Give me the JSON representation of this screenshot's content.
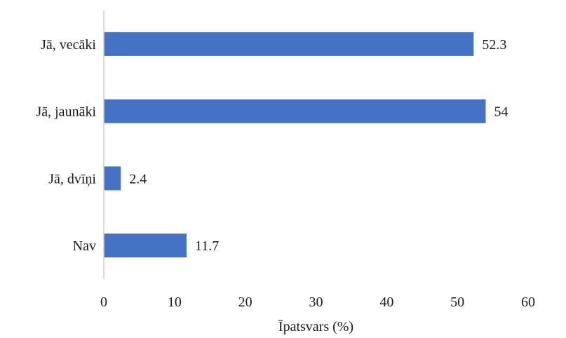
{
  "chart_data": {
    "type": "bar",
    "orientation": "horizontal",
    "title": "",
    "xlabel": "Īpatsvars (%)",
    "ylabel": "",
    "categories": [
      "Jā, vecāki",
      "Jā, jaunāki",
      "Jā, dvīņi",
      "Nav"
    ],
    "values": [
      52.3,
      54,
      2.4,
      11.7
    ],
    "data_labels": [
      "52.3",
      "54",
      "2.4",
      "11.7"
    ],
    "xlim": [
      0,
      60
    ],
    "x_ticks": [
      0,
      10,
      20,
      30,
      40,
      50,
      60
    ],
    "grid": false,
    "legend": "none",
    "bar_color": "#4472C4",
    "axis_color": "#d0d0d0"
  }
}
